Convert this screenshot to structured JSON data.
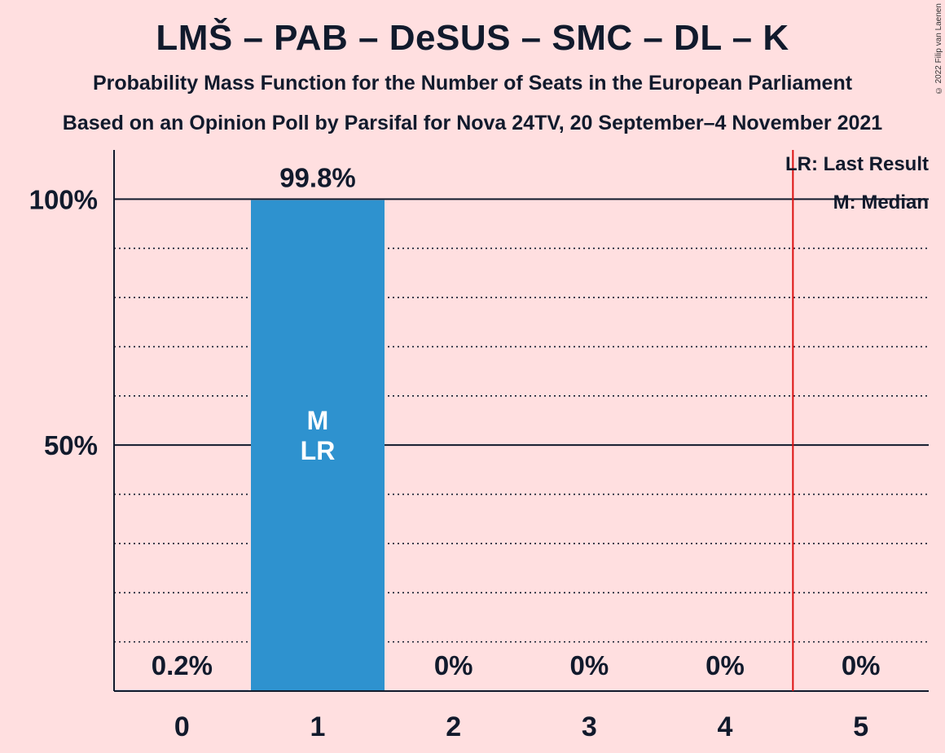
{
  "chart_data": {
    "type": "bar",
    "title": "LMŠ – PAB – DeSUS – SMC – DL – K",
    "subtitle": "Probability Mass Function for the Number of Seats in the European Parliament",
    "subtitle2": "Based on an Opinion Poll by Parsifal for Nova 24TV, 20 September–4 November 2021",
    "categories": [
      "0",
      "1",
      "2",
      "3",
      "4",
      "5"
    ],
    "values": [
      0.2,
      99.8,
      0,
      0,
      0,
      0
    ],
    "value_labels": [
      "0.2%",
      "99.8%",
      "0%",
      "0%",
      "0%",
      "0%"
    ],
    "bar_color": "#2e92cf",
    "ylim": [
      0,
      110
    ],
    "yticks": [
      {
        "value": 50,
        "label": "50%"
      },
      {
        "value": 100,
        "label": "100%"
      }
    ],
    "minor_gridlines": [
      10,
      20,
      30,
      40,
      60,
      70,
      80,
      90
    ],
    "grid": true,
    "median_seat": 1,
    "last_result_seat": 1,
    "inbar_labels": [
      "M",
      "LR"
    ],
    "last_result_line_x": 4.5,
    "last_result_line_color": "#dd1111",
    "legend": [
      "LR: Last Result",
      "M: Median"
    ],
    "legend_position": "top-right",
    "copyright": "© 2022 Filip van Laenen"
  }
}
